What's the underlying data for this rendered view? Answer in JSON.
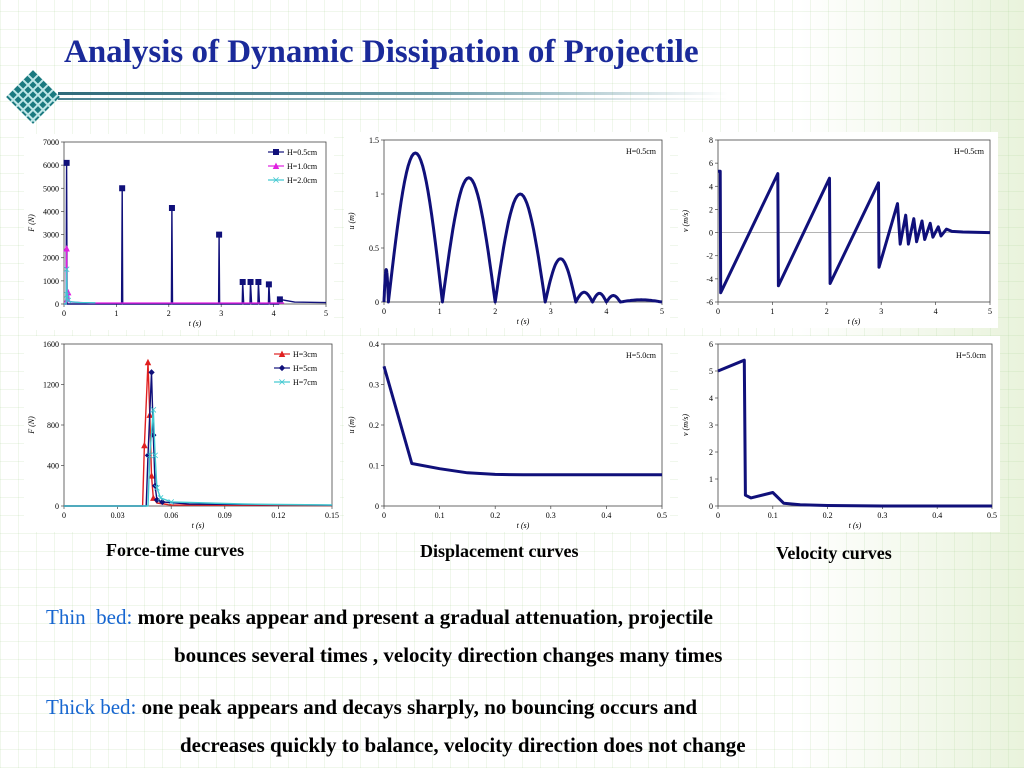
{
  "slide": {
    "title": "Analysis of Dynamic Dissipation of Projectile",
    "accent_color": "#1a2a9a",
    "label_color": "#1666d0",
    "logo_icon": "diamond-lattice-icon"
  },
  "captions": {
    "force": "Force-time curves",
    "displacement": "Displacement curves",
    "velocity": "Velocity curves"
  },
  "text": {
    "thin_label": "Thin  bed:",
    "thin_line1": "more peaks appear and present a gradual attenuation, projectile",
    "thin_line2": "bounces several times , velocity direction changes many times",
    "thick_label": "Thick bed:",
    "thick_line1": "one peak appears and decays sharply, no bouncing occurs and",
    "thick_line2": "decreases quickly to balance, velocity direction does not change"
  },
  "chart_data": [
    {
      "id": "force-thin",
      "type": "line",
      "ylabel": "F (N)",
      "xlabel": "t (s)",
      "xlim": [
        0,
        5
      ],
      "ylim": [
        0,
        7000
      ],
      "xticks": [
        0,
        1,
        2,
        3,
        4,
        5
      ],
      "yticks": [
        0,
        1000,
        2000,
        3000,
        4000,
        5000,
        6000,
        7000
      ],
      "legend": "top-right",
      "series": [
        {
          "name": "H=0.5cm",
          "color": "#10107a",
          "marker": "square",
          "x": [
            0,
            0.04,
            0.05,
            0.06,
            0.08,
            1.1,
            1.11,
            1.12,
            1.14,
            2.05,
            2.06,
            2.07,
            2.09,
            2.95,
            2.96,
            2.97,
            2.99,
            3.4,
            3.41,
            3.43,
            3.55,
            3.56,
            3.58,
            3.7,
            3.71,
            3.73,
            3.9,
            3.91,
            3.93,
            4.1,
            4.12,
            4.4,
            5
          ],
          "y": [
            0,
            0,
            6100,
            0,
            0,
            0,
            5000,
            0,
            0,
            0,
            4150,
            0,
            0,
            0,
            3000,
            0,
            0,
            0,
            950,
            0,
            0,
            950,
            0,
            0,
            950,
            0,
            0,
            850,
            0,
            0,
            200,
            80,
            60
          ]
        },
        {
          "name": "H=1.0cm",
          "color": "#e020e0",
          "marker": "triangle",
          "x": [
            0,
            0.04,
            0.05,
            0.06,
            0.08,
            0.1,
            0.15,
            0.5,
            1.0,
            2.0,
            3.0,
            4.0,
            4.2
          ],
          "y": [
            0,
            0,
            2400,
            200,
            500,
            120,
            80,
            40,
            40,
            40,
            40,
            40,
            40
          ]
        },
        {
          "name": "H=2.0cm",
          "color": "#40c8d0",
          "marker": "x",
          "x": [
            0,
            0.04,
            0.05,
            0.06,
            0.08,
            0.12,
            0.3,
            0.6
          ],
          "y": [
            0,
            0,
            1500,
            400,
            150,
            100,
            60,
            50
          ]
        }
      ]
    },
    {
      "id": "displacement-thin",
      "type": "line",
      "ylabel": "u (m)",
      "xlabel": "t (s)",
      "xlim": [
        0,
        5
      ],
      "ylim": [
        0,
        1.5
      ],
      "xticks": [
        0,
        1,
        2,
        3,
        4,
        5
      ],
      "yticks": [
        0,
        0.5,
        1,
        1.5
      ],
      "annotation": "H=0.5cm",
      "series": [
        {
          "name": "H=0.5cm",
          "color": "#10107a",
          "arcs": [
            {
              "t0": 0.0,
              "t1": 0.08,
              "peak": 0.3
            },
            {
              "t0": 0.08,
              "t1": 1.05,
              "peak": 1.38
            },
            {
              "t0": 1.05,
              "t1": 2.0,
              "peak": 1.15
            },
            {
              "t0": 2.0,
              "t1": 2.9,
              "peak": 1.0
            },
            {
              "t0": 2.9,
              "t1": 3.45,
              "peak": 0.4
            },
            {
              "t0": 3.45,
              "t1": 3.75,
              "peak": 0.09
            },
            {
              "t0": 3.75,
              "t1": 4.0,
              "peak": 0.08
            },
            {
              "t0": 4.0,
              "t1": 4.25,
              "peak": 0.06
            },
            {
              "t0": 4.25,
              "t1": 5.0,
              "peak": 0.02
            }
          ]
        }
      ]
    },
    {
      "id": "velocity-thin",
      "type": "line",
      "ylabel": "v (m/s)",
      "xlabel": "t (s)",
      "xlim": [
        0,
        5
      ],
      "ylim": [
        -6,
        8
      ],
      "xticks": [
        0,
        1,
        2,
        3,
        4,
        5
      ],
      "yticks": [
        -6,
        -4,
        -2,
        0,
        2,
        4,
        6,
        8
      ],
      "annotation": "H=0.5cm",
      "series": [
        {
          "name": "H=0.5cm",
          "color": "#10107a",
          "x": [
            0,
            0.04,
            0.05,
            1.1,
            1.11,
            2.05,
            2.06,
            2.95,
            2.96,
            3.3,
            3.35,
            3.45,
            3.5,
            3.6,
            3.65,
            3.75,
            3.8,
            3.9,
            3.95,
            4.05,
            4.1,
            4.2,
            4.3,
            4.5,
            5
          ],
          "y": [
            5.3,
            5.3,
            -5.2,
            5.1,
            -4.6,
            4.7,
            -4.4,
            4.3,
            -3.0,
            2.5,
            -1.0,
            1.5,
            -1.0,
            1.2,
            -0.8,
            1.0,
            -0.6,
            0.8,
            -0.4,
            0.5,
            -0.3,
            0.3,
            0.1,
            0.05,
            0
          ]
        }
      ]
    },
    {
      "id": "force-thick",
      "type": "line",
      "ylabel": "F (N)",
      "xlabel": "t (s)",
      "xlim": [
        0,
        0.15
      ],
      "ylim": [
        0,
        1600
      ],
      "xticks": [
        0,
        0.03,
        0.06,
        0.09,
        0.12,
        0.15
      ],
      "yticks": [
        0,
        400,
        800,
        1200,
        1600
      ],
      "legend": "top-right",
      "series": [
        {
          "name": "H=3cm",
          "color": "#e02020",
          "marker": "triangle",
          "x": [
            0,
            0.044,
            0.045,
            0.047,
            0.048,
            0.049,
            0.05,
            0.052,
            0.06,
            0.15
          ],
          "y": [
            0,
            0,
            600,
            1420,
            900,
            300,
            80,
            30,
            10,
            5
          ]
        },
        {
          "name": "H=5cm",
          "color": "#10107a",
          "marker": "diamond",
          "x": [
            0,
            0.046,
            0.047,
            0.049,
            0.05,
            0.051,
            0.052,
            0.055,
            0.07,
            0.15
          ],
          "y": [
            0,
            0,
            500,
            1320,
            700,
            200,
            60,
            40,
            20,
            8
          ]
        },
        {
          "name": "H=7cm",
          "color": "#40c8d0",
          "marker": "x",
          "x": [
            0,
            0.047,
            0.048,
            0.05,
            0.051,
            0.052,
            0.054,
            0.06,
            0.08,
            0.1,
            0.12,
            0.15
          ],
          "y": [
            0,
            0,
            500,
            950,
            500,
            180,
            80,
            40,
            30,
            20,
            15,
            10
          ]
        }
      ]
    },
    {
      "id": "displacement-thick",
      "type": "line",
      "ylabel": "u (m)",
      "xlabel": "t (s)",
      "xlim": [
        0,
        0.5
      ],
      "ylim": [
        0,
        0.4
      ],
      "xticks": [
        0,
        0.1,
        0.2,
        0.3,
        0.4,
        0.5
      ],
      "yticks": [
        0,
        0.1,
        0.2,
        0.3,
        0.4
      ],
      "annotation": "H=5.0cm",
      "series": [
        {
          "name": "H=5.0cm",
          "color": "#10107a",
          "x": [
            0,
            0.05,
            0.1,
            0.15,
            0.2,
            0.25,
            0.3,
            0.4,
            0.5
          ],
          "y": [
            0.345,
            0.105,
            0.092,
            0.082,
            0.078,
            0.077,
            0.077,
            0.077,
            0.077
          ]
        }
      ]
    },
    {
      "id": "velocity-thick",
      "type": "line",
      "ylabel": "v (m/s)",
      "xlabel": "t (s)",
      "xlim": [
        0,
        0.5
      ],
      "ylim": [
        0,
        6
      ],
      "xticks": [
        0,
        0.1,
        0.2,
        0.3,
        0.4,
        0.5
      ],
      "yticks": [
        0,
        1,
        2,
        3,
        4,
        5,
        6
      ],
      "annotation": "H=5.0cm",
      "series": [
        {
          "name": "H=5.0cm",
          "color": "#10107a",
          "x": [
            0,
            0.048,
            0.05,
            0.06,
            0.1,
            0.12,
            0.15,
            0.2,
            0.3,
            0.4,
            0.5
          ],
          "y": [
            5.0,
            5.4,
            0.4,
            0.3,
            0.5,
            0.1,
            0.05,
            0.02,
            0.0,
            0.0,
            0.0
          ]
        }
      ]
    }
  ]
}
